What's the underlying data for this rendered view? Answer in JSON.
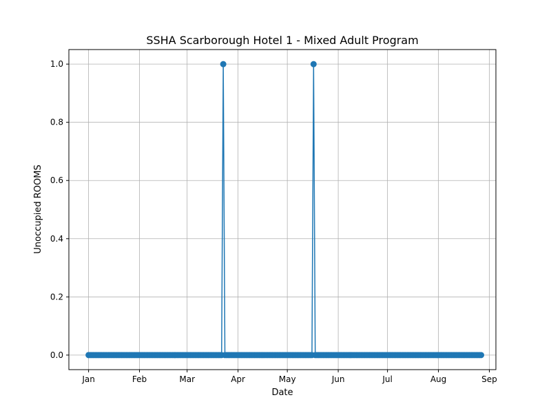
{
  "chart_data": {
    "type": "line",
    "title": "SSHA Scarborough Hotel 1 - Mixed Adult Program",
    "xlabel": "Date",
    "ylabel": "Unoccupied ROOMS",
    "x_ticks": [
      "Jan",
      "Feb",
      "Mar",
      "Apr",
      "May",
      "Jun",
      "Jul",
      "Aug",
      "Sep"
    ],
    "x_tick_dates": [
      "2024-01-01",
      "2024-02-01",
      "2024-03-01",
      "2024-04-01",
      "2024-05-01",
      "2024-06-01",
      "2024-07-01",
      "2024-08-01",
      "2024-09-01"
    ],
    "y_ticks": [
      "0.0",
      "0.2",
      "0.4",
      "0.6",
      "0.8",
      "1.0"
    ],
    "y_tick_values": [
      0.0,
      0.2,
      0.4,
      0.6,
      0.8,
      1.0
    ],
    "xlim": [
      "2023-12-20",
      "2024-09-05"
    ],
    "ylim": [
      -0.05,
      1.05
    ],
    "grid": true,
    "color": "#1f77b4",
    "series": [
      {
        "date_start": "2024-01-01",
        "date_end": "2024-08-27",
        "baseline_value": 0,
        "peaks": [
          {
            "date": "2024-03-23",
            "value": 1
          },
          {
            "date": "2024-05-17",
            "value": 1
          }
        ]
      }
    ]
  }
}
